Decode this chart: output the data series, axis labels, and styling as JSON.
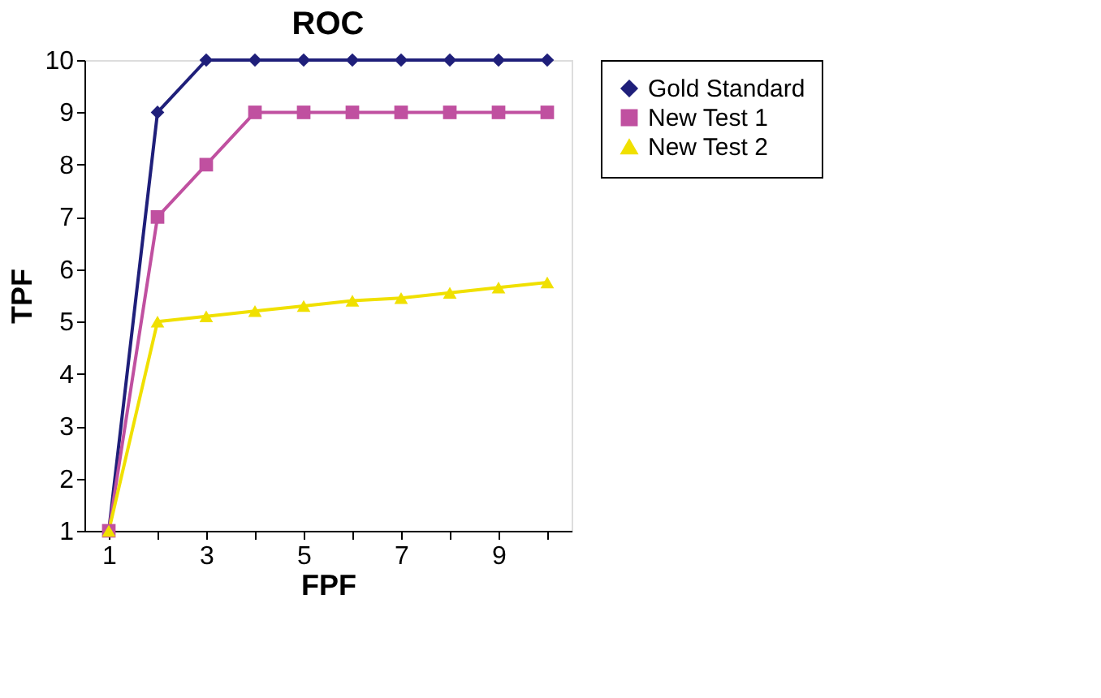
{
  "chart_data": {
    "type": "line",
    "title": "ROC",
    "xlabel": "FPF",
    "ylabel": "TPF",
    "categories": [
      "1",
      null,
      "3",
      null,
      "5",
      null,
      "7",
      null,
      "9",
      null
    ],
    "ylim": [
      1,
      10
    ],
    "yticks": [
      1,
      2,
      3,
      4,
      5,
      6,
      7,
      8,
      9,
      10
    ],
    "grid": false,
    "legend": "right",
    "series": [
      {
        "name": "Gold Standard",
        "color": "#1f1f7a",
        "marker": "diamond",
        "values": [
          1,
          9,
          10,
          10,
          10,
          10,
          10,
          10,
          10,
          10
        ]
      },
      {
        "name": "New Test 1",
        "color": "#c050a0",
        "marker": "square",
        "values": [
          1,
          7,
          8,
          9,
          9,
          9,
          9,
          9,
          9,
          9
        ]
      },
      {
        "name": "New Test 2",
        "color": "#f0e000",
        "marker": "triangle",
        "values": [
          1,
          5,
          5.1,
          5.2,
          5.3,
          5.4,
          5.45,
          5.55,
          5.65,
          5.75
        ]
      }
    ]
  }
}
